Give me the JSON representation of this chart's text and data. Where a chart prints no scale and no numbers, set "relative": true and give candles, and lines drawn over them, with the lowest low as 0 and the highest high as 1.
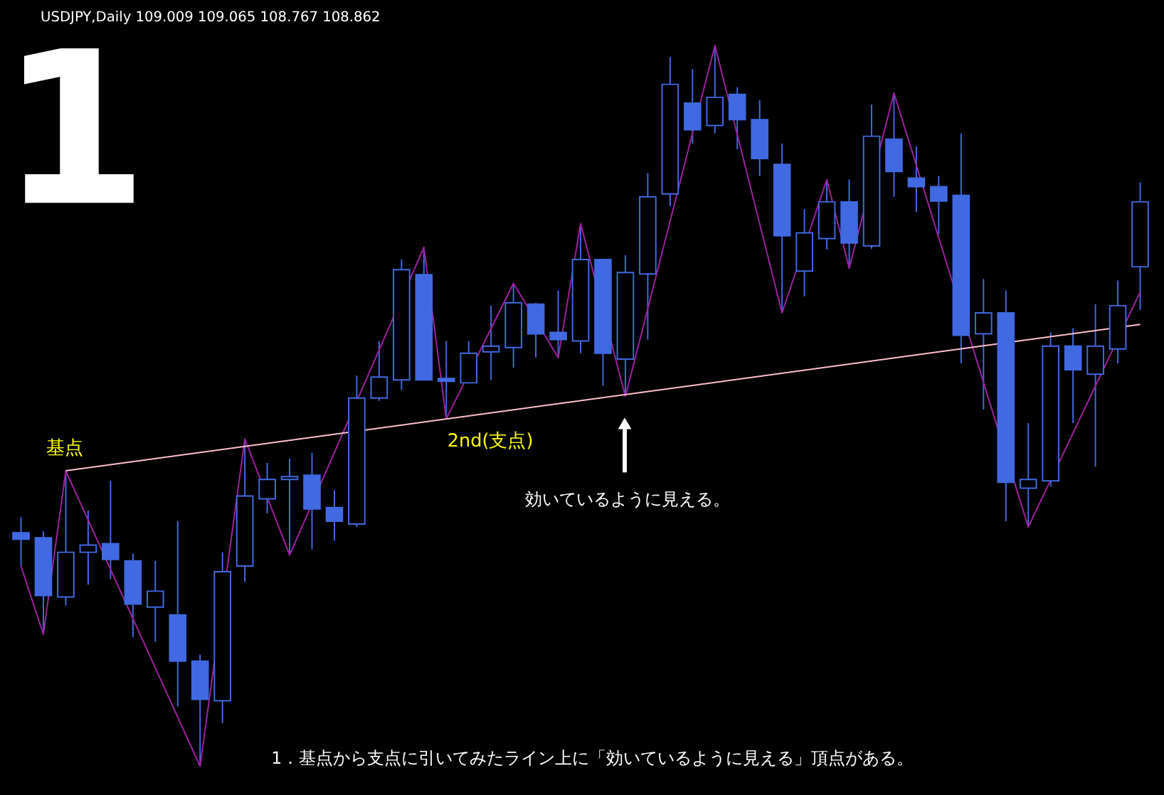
{
  "chart_data": {
    "type": "candlestick",
    "title": "USDJPY,Daily 109.009 109.065 108.767 108.862",
    "relative": true,
    "color": "#4169e1",
    "categories": [
      null,
      null,
      null,
      null,
      null,
      null,
      null,
      null,
      null,
      null,
      null,
      null,
      null,
      null,
      null,
      null,
      null,
      null,
      null,
      null,
      null,
      null,
      null,
      null,
      null,
      null,
      null,
      null,
      null,
      null,
      null,
      null,
      null,
      null,
      null,
      null,
      null,
      null,
      null,
      null,
      null,
      null,
      null,
      null,
      null,
      null,
      null,
      null,
      null,
      null,
      null
    ],
    "ohlc": [
      [
        0.324,
        0.346,
        0.278,
        0.315
      ],
      [
        0.317,
        0.326,
        0.183,
        0.237
      ],
      [
        0.235,
        0.41,
        0.223,
        0.297
      ],
      [
        0.297,
        0.355,
        0.252,
        0.307
      ],
      [
        0.309,
        0.396,
        0.26,
        0.287
      ],
      [
        0.285,
        0.295,
        0.179,
        0.225
      ],
      [
        0.221,
        0.285,
        0.173,
        0.243
      ],
      [
        0.21,
        0.34,
        0.083,
        0.146
      ],
      [
        0.146,
        0.155,
        0,
        0.093
      ],
      [
        0.091,
        0.297,
        0.06,
        0.27
      ],
      [
        0.278,
        0.454,
        0.256,
        0.375
      ],
      [
        0.371,
        0.421,
        0.351,
        0.398
      ],
      [
        0.398,
        0.427,
        0.293,
        0.402
      ],
      [
        0.404,
        0.435,
        0.301,
        0.357
      ],
      [
        0.359,
        0.383,
        0.313,
        0.34
      ],
      [
        0.336,
        0.542,
        0.332,
        0.511
      ],
      [
        0.511,
        0.59,
        0.507,
        0.54
      ],
      [
        0.536,
        0.703,
        0.522,
        0.689
      ],
      [
        0.682,
        0.72,
        0.536,
        0.536
      ],
      [
        0.538,
        0.59,
        0.482,
        0.534
      ],
      [
        0.532,
        0.59,
        0.532,
        0.573
      ],
      [
        0.575,
        0.639,
        0.536,
        0.583
      ],
      [
        0.581,
        0.67,
        0.553,
        0.643
      ],
      [
        0.641,
        0.643,
        0.567,
        0.6
      ],
      [
        0.602,
        0.66,
        0.567,
        0.592
      ],
      [
        0.59,
        0.753,
        0.573,
        0.703
      ],
      [
        0.703,
        0.703,
        0.528,
        0.573
      ],
      [
        0.565,
        0.709,
        0.513,
        0.685
      ],
      [
        0.683,
        0.823,
        0.592,
        0.79
      ],
      [
        0.794,
        0.984,
        0.777,
        0.946
      ],
      [
        0.92,
        0.967,
        0.864,
        0.883
      ],
      [
        0.889,
        1,
        0.878,
        0.928
      ],
      [
        0.932,
        0.942,
        0.856,
        0.897
      ],
      [
        0.897,
        0.924,
        0.819,
        0.843
      ],
      [
        0.835,
        0.864,
        0.629,
        0.736
      ],
      [
        0.687,
        0.773,
        0.652,
        0.74
      ],
      [
        0.732,
        0.814,
        0.717,
        0.783
      ],
      [
        0.783,
        0.814,
        0.691,
        0.726
      ],
      [
        0.722,
        0.918,
        0.718,
        0.874
      ],
      [
        0.87,
        0.934,
        0.79,
        0.825
      ],
      [
        0.816,
        0.86,
        0.769,
        0.804
      ],
      [
        0.804,
        0.819,
        0.738,
        0.784
      ],
      [
        0.792,
        0.878,
        0.559,
        0.598
      ],
      [
        0.6,
        0.676,
        0.495,
        0.629
      ],
      [
        0.629,
        0.66,
        0.34,
        0.394
      ],
      [
        0.386,
        0.476,
        0.332,
        0.398
      ],
      [
        0.396,
        0.602,
        0.388,
        0.583
      ],
      [
        0.583,
        0.608,
        0.476,
        0.55
      ],
      [
        0.544,
        0.641,
        0.416,
        0.583
      ],
      [
        0.579,
        0.674,
        0.559,
        0.639
      ],
      [
        0.693,
        0.81,
        0.633,
        0.783
      ]
    ],
    "series": [
      {
        "type": "line",
        "color": "#a020a0",
        "values": [
          0.278,
          0.183,
          0.41,
          null,
          null,
          null,
          null,
          null,
          0,
          null,
          0.454,
          null,
          0.293,
          null,
          null,
          null,
          null,
          null,
          0.72,
          0.482,
          null,
          null,
          0.67,
          null,
          0.567,
          0.753,
          null,
          0.513,
          null,
          null,
          null,
          1,
          null,
          null,
          0.629,
          null,
          0.814,
          0.691,
          null,
          0.934,
          null,
          null,
          null,
          null,
          null,
          0.332,
          null,
          null,
          null,
          null,
          0.658
        ]
      },
      {
        "type": "line",
        "color": "#ffc0cb",
        "values": [
          null,
          null,
          0.41,
          null,
          null,
          null,
          null,
          null,
          null,
          null,
          null,
          null,
          null,
          null,
          null,
          null,
          null,
          null,
          null,
          null,
          null,
          null,
          null,
          null,
          null,
          null,
          null,
          null,
          null,
          null,
          null,
          null,
          null,
          null,
          null,
          null,
          null,
          null,
          null,
          null,
          null,
          null,
          null,
          null,
          null,
          null,
          null,
          null,
          null,
          null,
          0.613
        ]
      }
    ],
    "annotations": [
      "1",
      {
        "text": "基点",
        "y": 0.41
      },
      {
        "text": "2nd(支点)",
        "y": 0.482
      },
      "効いているように見える。",
      "1．基点から支点に引いてみたライン上に「効いているように見える」頂点がある。"
    ]
  }
}
